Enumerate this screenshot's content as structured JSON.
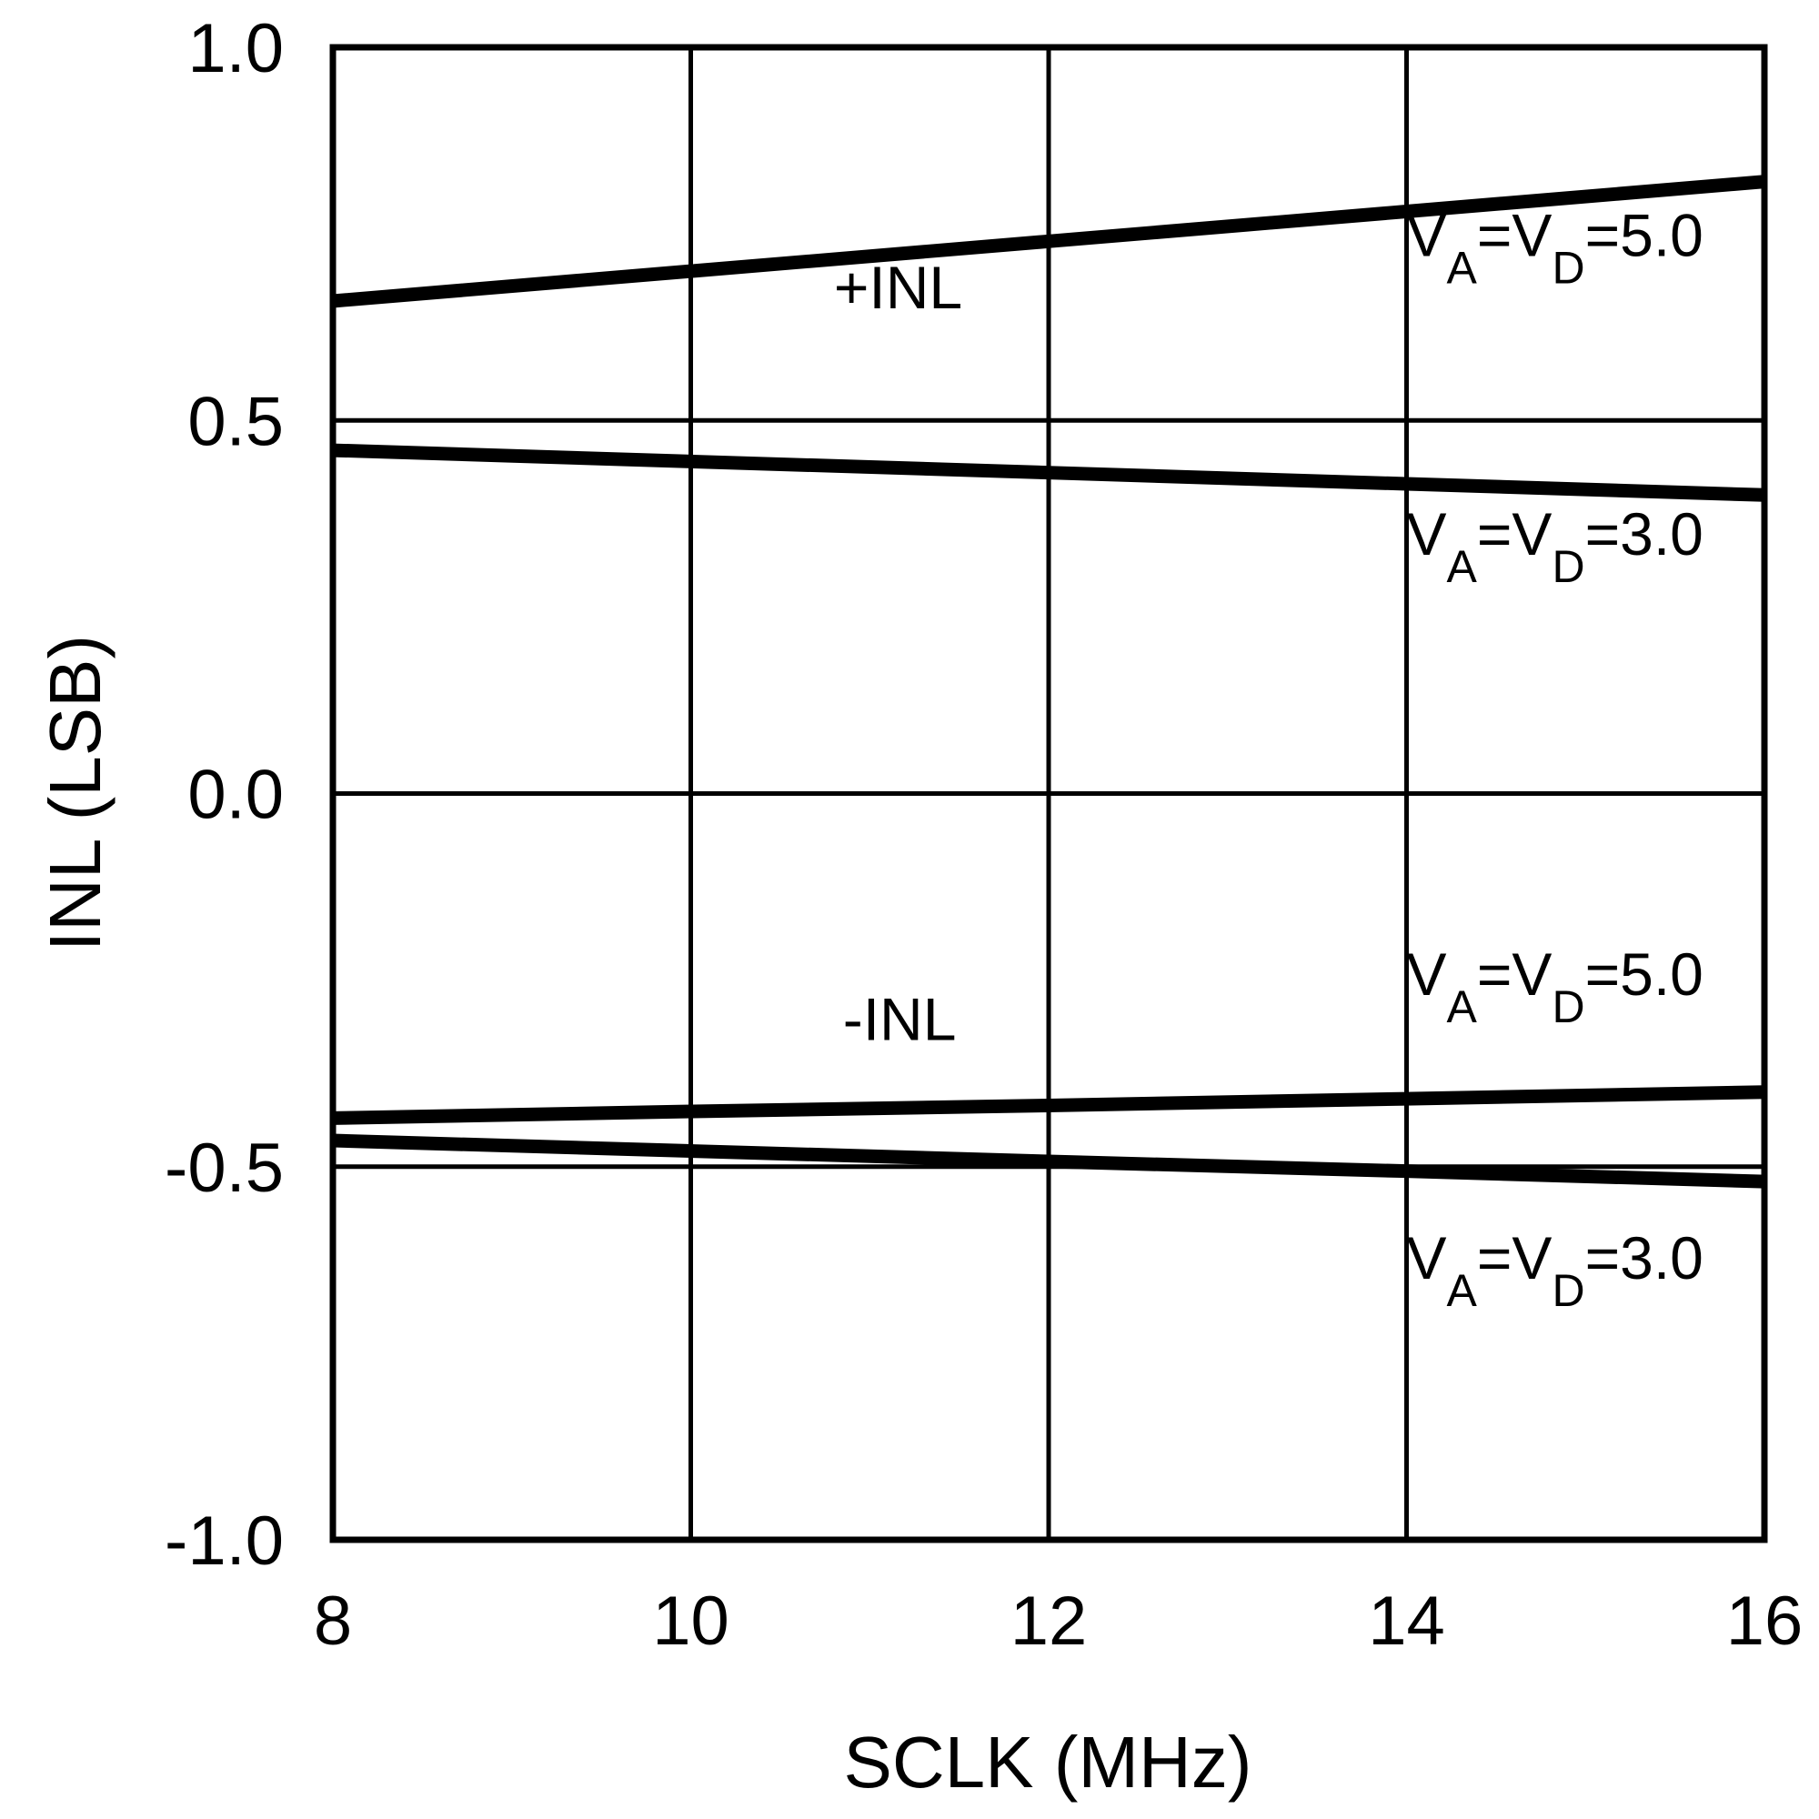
{
  "chart_data": {
    "type": "line",
    "title": "",
    "xlabel": "SCLK (MHz)",
    "ylabel": "INL (LSB)",
    "xlim": [
      8,
      16
    ],
    "ylim": [
      -1.0,
      1.0
    ],
    "x_ticks": [
      8,
      10,
      12,
      14,
      16
    ],
    "x_tick_labels": [
      "8",
      "10",
      "12",
      "14",
      "16"
    ],
    "y_ticks": [
      1.0,
      0.5,
      0.0,
      -0.5,
      -1.0
    ],
    "y_tick_labels": [
      "1.0",
      "0.5",
      "0.0",
      "-0.5",
      "-1.0"
    ],
    "grid": true,
    "legend": null,
    "x": [
      8,
      10,
      12,
      14,
      16
    ],
    "series": [
      {
        "name": "+INL, VA=VD=5.0",
        "group": "+INL",
        "supply": "5.0",
        "values": [
          0.66,
          0.7,
          0.74,
          0.78,
          0.82
        ]
      },
      {
        "name": "+INL, VA=VD=3.0",
        "group": "+INL",
        "supply": "3.0",
        "values": [
          0.46,
          0.445,
          0.43,
          0.415,
          0.4
        ]
      },
      {
        "name": "-INL, VA=VD=5.0",
        "group": "-INL",
        "supply": "5.0",
        "values": [
          -0.435,
          -0.426,
          -0.418,
          -0.409,
          -0.4
        ]
      },
      {
        "name": "-INL, VA=VD=3.0",
        "group": "-INL",
        "supply": "3.0",
        "values": [
          -0.465,
          -0.479,
          -0.493,
          -0.506,
          -0.52
        ]
      }
    ],
    "annotations": [
      {
        "text": "+INL",
        "x": 10.8,
        "y": 0.65
      },
      {
        "text": "-INL",
        "x": 10.85,
        "y": -0.33
      },
      {
        "text": "VA=VD=5.0",
        "main": "V",
        "sub1": "A",
        "mid": "=V",
        "sub2": "D",
        "tail": "=5.0",
        "x": 14.0,
        "y": 0.72
      },
      {
        "text": "VA=VD=3.0",
        "main": "V",
        "sub1": "A",
        "mid": "=V",
        "sub2": "D",
        "tail": "=3.0",
        "x": 14.0,
        "y": 0.32
      },
      {
        "text": "VA=VD=5.0",
        "main": "V",
        "sub1": "A",
        "mid": "=V",
        "sub2": "D",
        "tail": "=5.0",
        "x": 14.0,
        "y": -0.27
      },
      {
        "text": "VA=VD=3.0",
        "main": "V",
        "sub1": "A",
        "mid": "=V",
        "sub2": "D",
        "tail": "=3.0",
        "x": 14.0,
        "y": -0.65
      }
    ],
    "colors": {
      "line": "#000000",
      "grid": "#000000",
      "background": "#ffffff"
    }
  }
}
